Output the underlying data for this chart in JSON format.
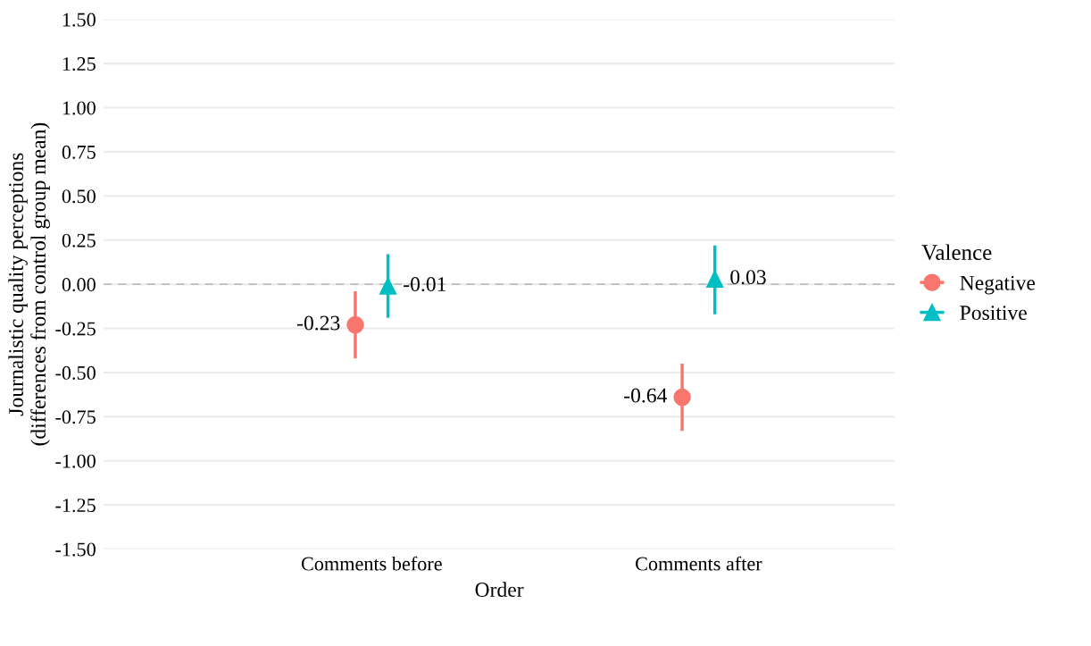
{
  "chart_data": {
    "type": "scatter",
    "xlabel": "Order",
    "ylabel": "Journalistic quality perceptions\n(differences from control group mean)",
    "legend_title": "Valence",
    "categories": [
      "Comments before",
      "Comments after"
    ],
    "series": [
      {
        "name": "Negative",
        "color": "#f8766d",
        "marker": "circle",
        "values": [
          -0.23,
          -0.64
        ],
        "errors": [
          [
            -0.42,
            -0.04
          ],
          [
            -0.83,
            -0.45
          ]
        ],
        "value_labels": [
          "-0.23",
          "-0.64"
        ]
      },
      {
        "name": "Positive",
        "color": "#00bfc4",
        "marker": "triangle",
        "values": [
          -0.01,
          0.03
        ],
        "errors": [
          [
            -0.19,
            0.17
          ],
          [
            -0.17,
            0.22
          ]
        ],
        "value_labels": [
          "-0.01",
          "0.03"
        ]
      }
    ],
    "ylim": [
      -1.5,
      1.5
    ],
    "yticks": [
      {
        "value": -1.5,
        "label": "-1.50"
      },
      {
        "value": -1.25,
        "label": "-1.25"
      },
      {
        "value": -1.0,
        "label": "-1.00"
      },
      {
        "value": -0.75,
        "label": "-0.75"
      },
      {
        "value": -0.5,
        "label": "-0.50"
      },
      {
        "value": -0.25,
        "label": "-0.25"
      },
      {
        "value": 0,
        "label": "0.00"
      },
      {
        "value": 0.25,
        "label": "0.25"
      },
      {
        "value": 0.5,
        "label": "0.50"
      },
      {
        "value": 0.75,
        "label": "0.75"
      },
      {
        "value": 1.0,
        "label": "1.00"
      },
      {
        "value": 1.25,
        "label": "1.25"
      },
      {
        "value": 1.5,
        "label": "1.50"
      }
    ],
    "ref_lines": [
      {
        "axis": "y",
        "value": 0,
        "color": "#bdbdbd",
        "line_style": "dashed"
      }
    ],
    "grid": "y",
    "legend": "right"
  }
}
